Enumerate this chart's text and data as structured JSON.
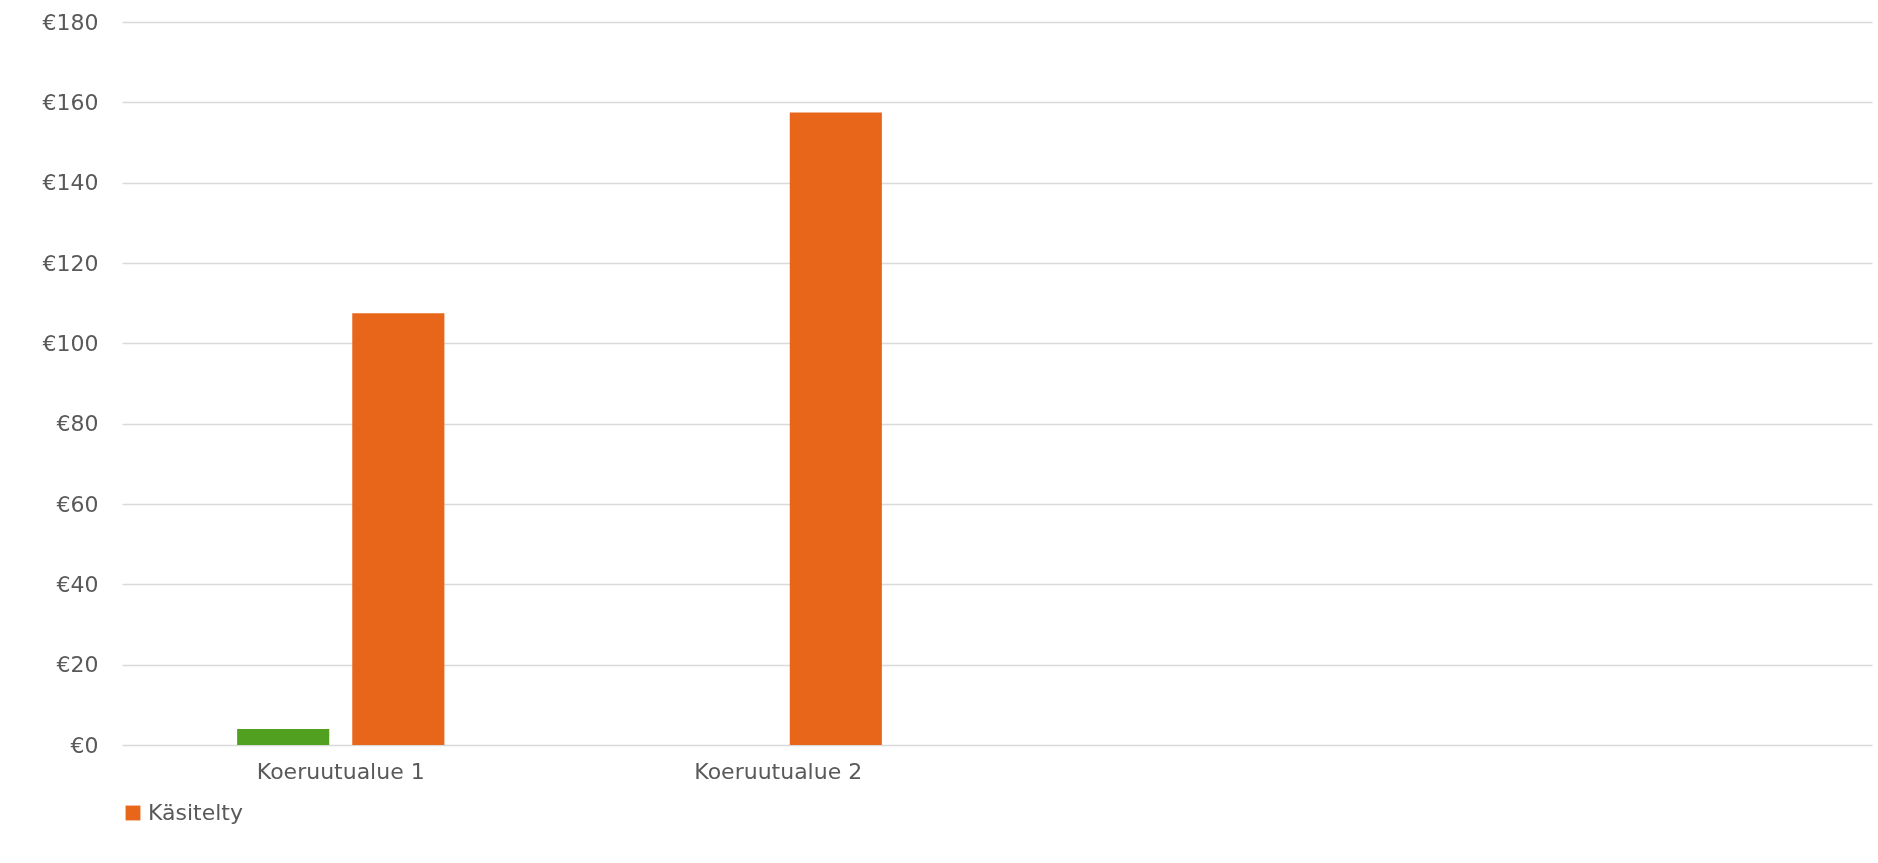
{
  "chart_data": {
    "type": "bar",
    "categories": [
      "Koeruutualue 1",
      "Koeruutualue 2",
      null,
      null
    ],
    "series": [
      {
        "color": "#52a020",
        "values": [
          4,
          null,
          null,
          null
        ]
      },
      {
        "name": "Käsitelty",
        "color": "#e8661a",
        "values": [
          107.5,
          157.5,
          null,
          null
        ]
      }
    ],
    "ylim": [
      0,
      180
    ],
    "yticks": [
      {
        "value": 0,
        "label": "€0"
      },
      {
        "value": 20,
        "label": "€20"
      },
      {
        "value": 40,
        "label": "€40"
      },
      {
        "value": 60,
        "label": "€60"
      },
      {
        "value": 80,
        "label": "€80"
      },
      {
        "value": 100,
        "label": "€100"
      },
      {
        "value": 120,
        "label": "€120"
      },
      {
        "value": 140,
        "label": "€140"
      },
      {
        "value": 160,
        "label": "€160"
      },
      {
        "value": 180,
        "label": "€180"
      }
    ],
    "grid": "y",
    "legend": "bottom"
  }
}
